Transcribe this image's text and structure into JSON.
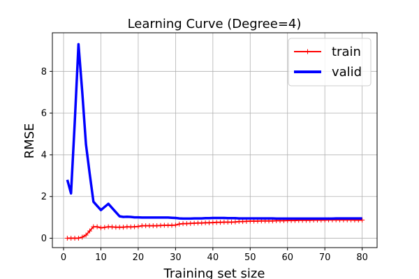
{
  "chart_data": {
    "type": "line",
    "title": "Learning Curve (Degree=4)",
    "xlabel": "Training set size",
    "ylabel": "RMSE",
    "xlim": [
      -3,
      84
    ],
    "ylim": [
      -0.45,
      9.85
    ],
    "xticks": [
      0,
      10,
      20,
      30,
      40,
      50,
      60,
      70,
      80
    ],
    "yticks": [
      0,
      2,
      4,
      6,
      8
    ],
    "grid": true,
    "legend_position": "top-right",
    "series": [
      {
        "name": "train",
        "color": "#ff0000",
        "marker": "plus",
        "x": [
          1,
          2,
          3,
          4,
          5,
          6,
          7,
          8,
          9,
          10,
          11,
          12,
          13,
          14,
          15,
          16,
          17,
          18,
          19,
          20,
          21,
          22,
          23,
          24,
          25,
          26,
          27,
          28,
          29,
          30,
          31,
          32,
          33,
          34,
          35,
          36,
          37,
          38,
          39,
          40,
          41,
          42,
          43,
          44,
          45,
          46,
          47,
          48,
          49,
          50,
          51,
          52,
          53,
          54,
          55,
          56,
          57,
          58,
          59,
          60,
          61,
          62,
          63,
          64,
          65,
          66,
          67,
          68,
          69,
          70,
          71,
          72,
          73,
          74,
          75,
          76,
          77,
          78,
          79,
          80
        ],
        "y": [
          0.0,
          0.0,
          0.0,
          0.0,
          0.05,
          0.15,
          0.35,
          0.55,
          0.55,
          0.5,
          0.52,
          0.55,
          0.54,
          0.53,
          0.53,
          0.53,
          0.55,
          0.54,
          0.55,
          0.56,
          0.6,
          0.6,
          0.6,
          0.6,
          0.6,
          0.61,
          0.62,
          0.62,
          0.62,
          0.63,
          0.68,
          0.7,
          0.7,
          0.71,
          0.72,
          0.73,
          0.73,
          0.74,
          0.74,
          0.75,
          0.76,
          0.76,
          0.77,
          0.77,
          0.77,
          0.78,
          0.8,
          0.8,
          0.81,
          0.82,
          0.82,
          0.82,
          0.83,
          0.83,
          0.83,
          0.83,
          0.84,
          0.84,
          0.84,
          0.85,
          0.85,
          0.85,
          0.86,
          0.86,
          0.86,
          0.86,
          0.87,
          0.87,
          0.87,
          0.87,
          0.88,
          0.88,
          0.88,
          0.88,
          0.88,
          0.88,
          0.88,
          0.87,
          0.87,
          0.87
        ]
      },
      {
        "name": "valid",
        "color": "#0000ff",
        "marker": "none",
        "x": [
          1,
          2,
          3,
          4,
          5,
          6,
          7,
          8,
          9,
          10,
          11,
          12,
          13,
          14,
          15,
          16,
          17,
          18,
          19,
          20,
          21,
          22,
          23,
          24,
          25,
          26,
          27,
          28,
          29,
          30,
          31,
          32,
          33,
          34,
          35,
          36,
          37,
          38,
          39,
          40,
          41,
          42,
          43,
          44,
          45,
          46,
          47,
          48,
          49,
          50,
          51,
          52,
          53,
          54,
          55,
          56,
          57,
          58,
          59,
          60,
          61,
          62,
          63,
          64,
          65,
          66,
          67,
          68,
          69,
          70,
          71,
          72,
          73,
          74,
          75,
          76,
          77,
          78,
          79,
          80
        ],
        "y": [
          2.8,
          2.15,
          5.6,
          9.3,
          7.0,
          4.5,
          3.1,
          1.75,
          1.55,
          1.35,
          1.5,
          1.65,
          1.45,
          1.25,
          1.05,
          1.02,
          1.03,
          1.02,
          1.0,
          1.0,
          0.99,
          0.99,
          0.99,
          0.99,
          0.99,
          0.99,
          0.99,
          0.99,
          0.98,
          0.97,
          0.95,
          0.94,
          0.94,
          0.94,
          0.95,
          0.95,
          0.95,
          0.96,
          0.96,
          0.97,
          0.97,
          0.97,
          0.97,
          0.96,
          0.96,
          0.96,
          0.95,
          0.95,
          0.95,
          0.95,
          0.95,
          0.95,
          0.95,
          0.95,
          0.95,
          0.95,
          0.94,
          0.94,
          0.94,
          0.94,
          0.94,
          0.94,
          0.94,
          0.94,
          0.94,
          0.94,
          0.94,
          0.94,
          0.94,
          0.94,
          0.94,
          0.94,
          0.95,
          0.95,
          0.95,
          0.95,
          0.95,
          0.95,
          0.95,
          0.95
        ]
      }
    ]
  }
}
